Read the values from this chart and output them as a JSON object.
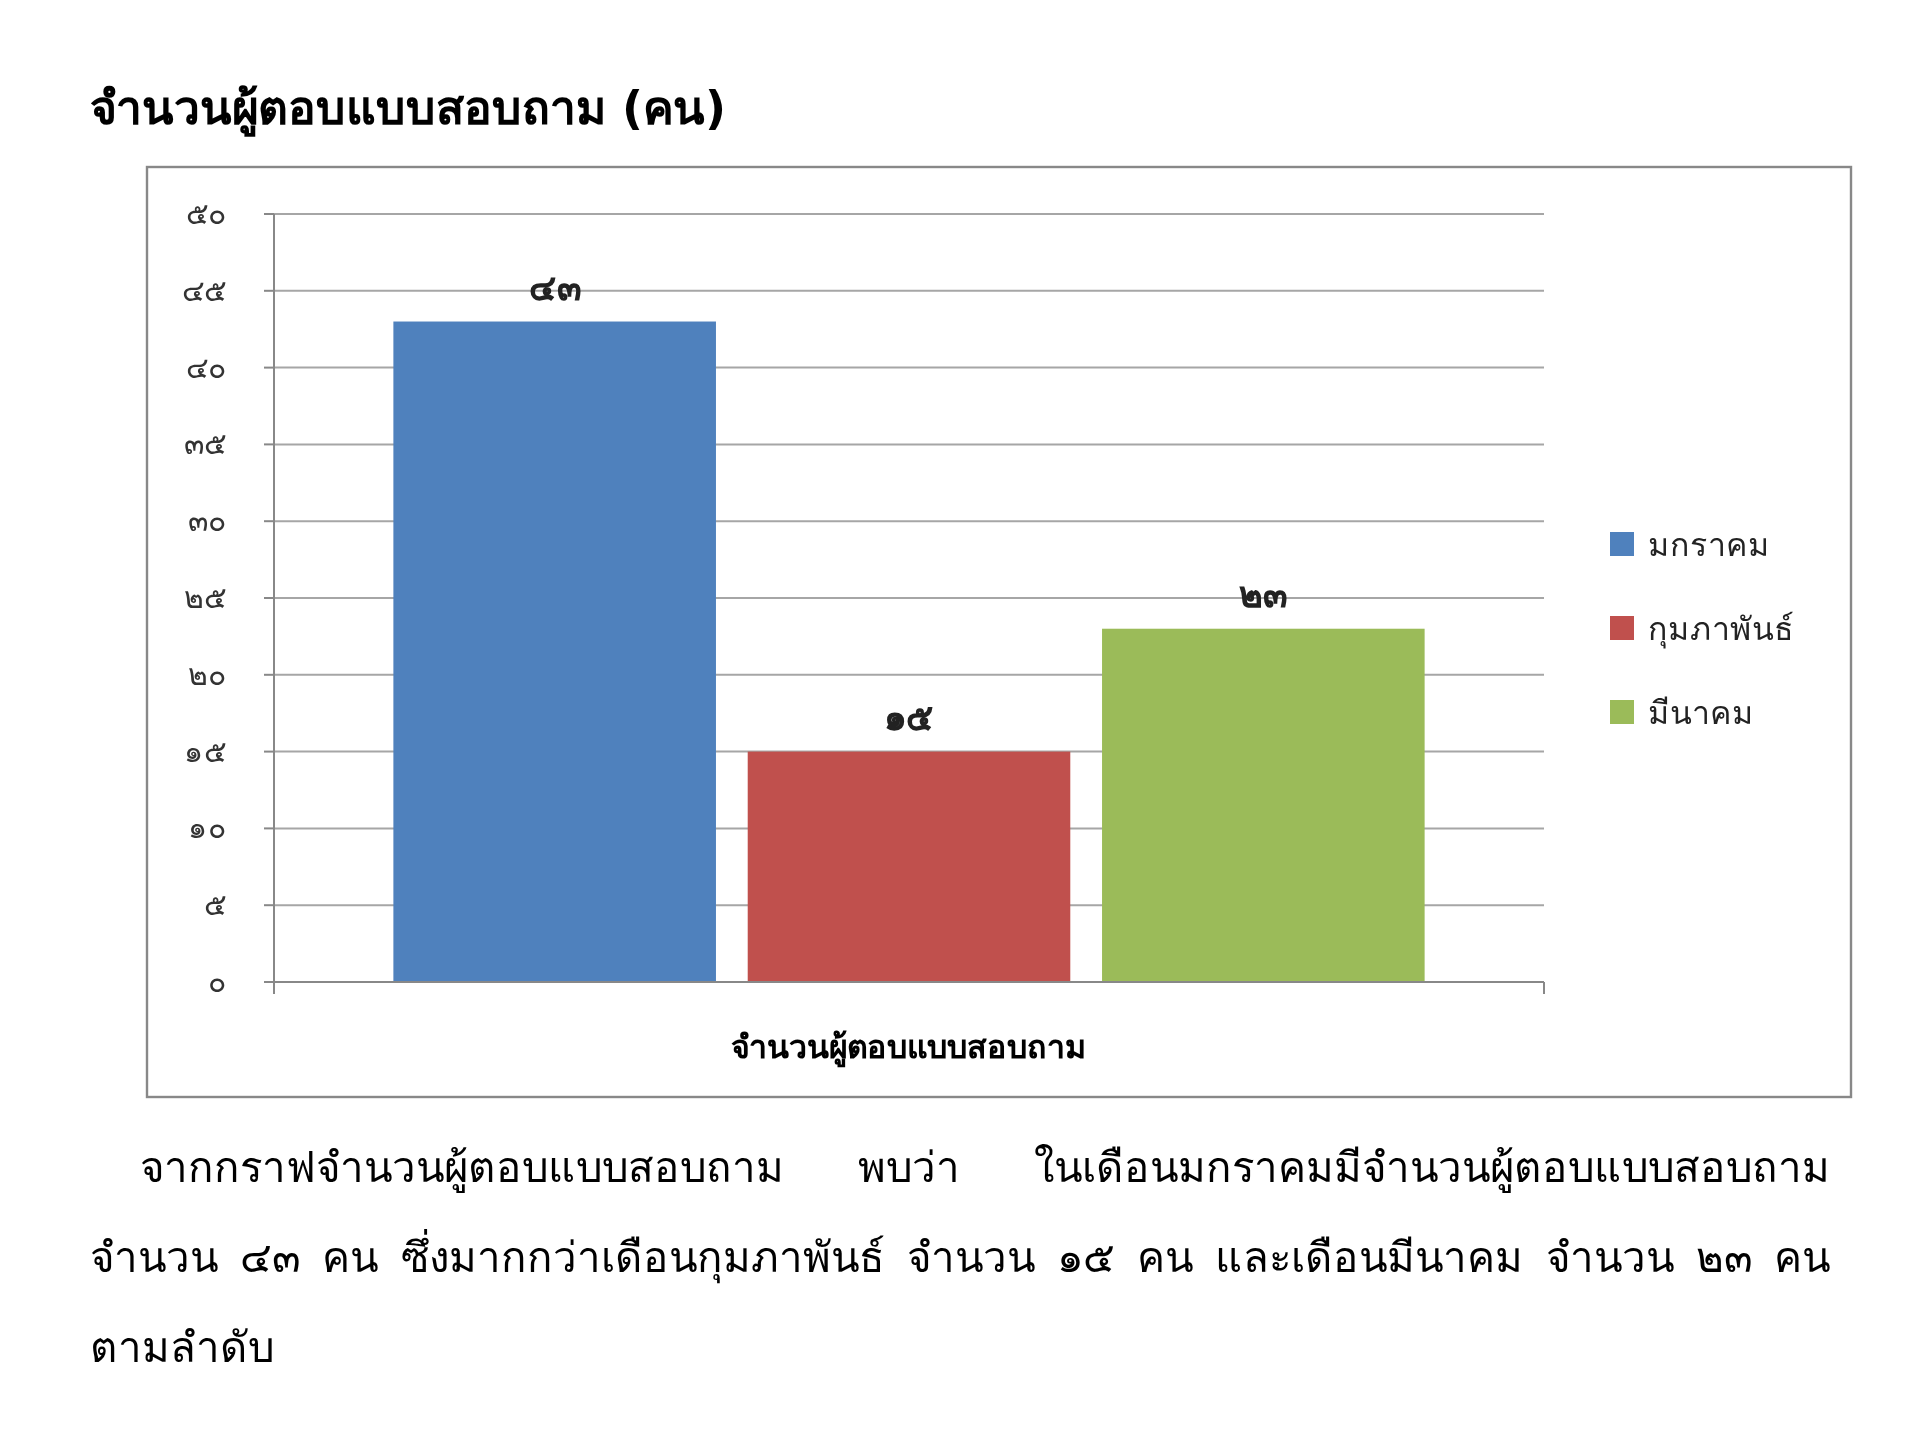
{
  "chart_data": {
    "type": "bar",
    "title": "จำนวนผู้ตอบแบบสอบถาม (คน)",
    "categories": [
      "จำนวนผู้ตอบแบบสอบถาม"
    ],
    "series": [
      {
        "name": "มกราคม",
        "color": "#4f81bd",
        "values": [
          43
        ],
        "value_labels": [
          "๔๓"
        ]
      },
      {
        "name": "กุมภาพันธ์",
        "color": "#c0504d",
        "values": [
          15
        ],
        "value_labels": [
          "๑๕"
        ]
      },
      {
        "name": "มีนาคม",
        "color": "#9bbb59",
        "values": [
          23
        ],
        "value_labels": [
          "๒๓"
        ]
      }
    ],
    "ylim": [
      0,
      50
    ],
    "yticks": [
      {
        "value": 0,
        "label": "๐"
      },
      {
        "value": 5,
        "label": "๕"
      },
      {
        "value": 10,
        "label": "๑๐"
      },
      {
        "value": 15,
        "label": "๑๕"
      },
      {
        "value": 20,
        "label": "๒๐"
      },
      {
        "value": 25,
        "label": "๒๕"
      },
      {
        "value": 30,
        "label": "๓๐"
      },
      {
        "value": 35,
        "label": "๓๕"
      },
      {
        "value": 40,
        "label": "๔๐"
      },
      {
        "value": 45,
        "label": "๔๕"
      },
      {
        "value": 50,
        "label": "๕๐"
      }
    ],
    "grid": "y",
    "legend": "right",
    "annotations": [
      "จากกราฟจำนวนผู้ตอบแบบสอบถาม พบว่า ในเดือนมกราคมมีจำนวนผู้ตอบแบบสอบถาม จำนวน ๔๓ คน  ซึ่งมากกว่าเดือนกุมภาพันธ์ จำนวน ๑๕ คน และเดือนมีนาคม จำนวน ๒๓ คน  ตามลำดับ"
    ]
  }
}
